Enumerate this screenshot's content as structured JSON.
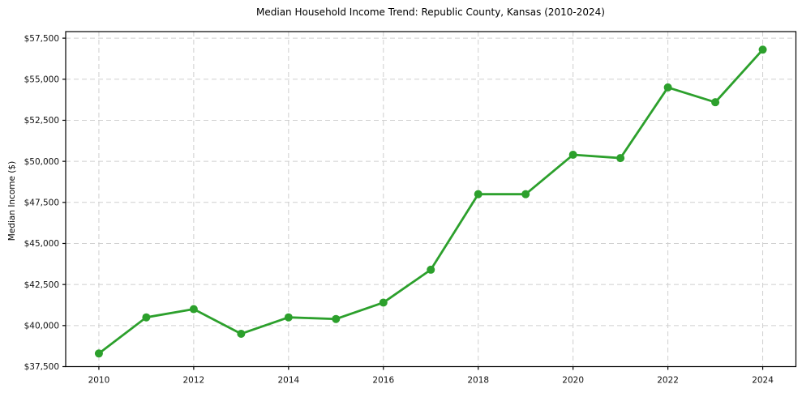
{
  "chart_data": {
    "type": "line",
    "title": "Median Household Income Trend: Republic County, Kansas (2010-2024)",
    "xlabel": "",
    "ylabel": "Median Income ($)",
    "x": [
      2010,
      2011,
      2012,
      2013,
      2014,
      2015,
      2016,
      2017,
      2018,
      2019,
      2020,
      2021,
      2022,
      2023,
      2024
    ],
    "values": [
      38300,
      40500,
      41000,
      39500,
      40500,
      40400,
      41400,
      43400,
      48000,
      48000,
      50400,
      50200,
      54500,
      53600,
      56800
    ],
    "xlim": [
      2009.3,
      2024.7
    ],
    "ylim": [
      37500,
      57900
    ],
    "x_ticks": {
      "values": [
        2010,
        2012,
        2014,
        2016,
        2018,
        2020,
        2022,
        2024
      ],
      "labels": [
        "2010",
        "2012",
        "2014",
        "2016",
        "2018",
        "2020",
        "2022",
        "2024"
      ]
    },
    "y_ticks": {
      "values": [
        37500,
        40000,
        42500,
        45000,
        47500,
        50000,
        52500,
        55000,
        57500
      ],
      "labels": [
        "$37,500",
        "$40,000",
        "$42,500",
        "$45,000",
        "$47,500",
        "$50,000",
        "$52,500",
        "$55,000",
        "$57,500"
      ]
    },
    "grid": {
      "show": true,
      "style": "dashed",
      "color": "#cfcfcf"
    },
    "legend": "none",
    "line_color": "#2ca02c",
    "marker": "circle",
    "marker_radius": 5,
    "background": "#ffffff"
  }
}
